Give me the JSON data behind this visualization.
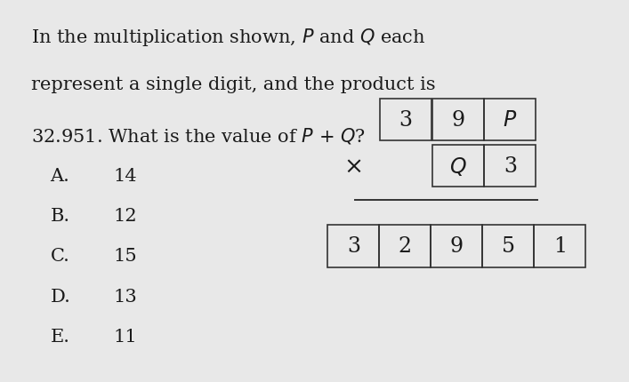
{
  "bg_color": "#e8e8e8",
  "text_color": "#1a1a1a",
  "question_lines": [
    "In the multiplication shown, $P$ and $Q$ each",
    "represent a single digit, and the product is",
    "32.951. What is the value of $P$ + $Q$?"
  ],
  "options": [
    [
      "A.",
      "14"
    ],
    [
      "B.",
      "12"
    ],
    [
      "C.",
      "15"
    ],
    [
      "D.",
      "13"
    ],
    [
      "E.",
      "11"
    ]
  ],
  "top_row": [
    "3",
    "9",
    "$P$"
  ],
  "mid_row": [
    "$Q$",
    "3"
  ],
  "bottom_row": [
    "3",
    "2",
    "9",
    "5",
    "1"
  ],
  "multiply_symbol": "×",
  "font_size_question": 15,
  "font_size_options": 15,
  "font_size_cells": 17
}
